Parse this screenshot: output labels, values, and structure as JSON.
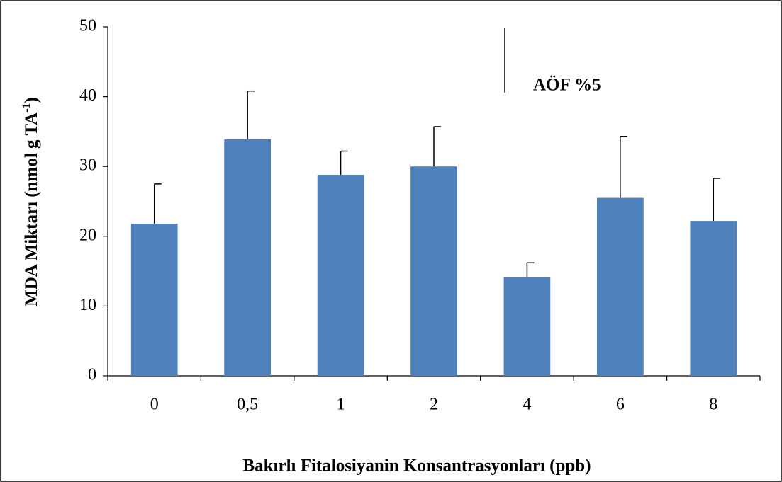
{
  "chart_data": {
    "type": "bar",
    "xlabel": "Bakırlı Fitalosiyanin Konsantrasyonları (ppb)",
    "ylabel_parts": [
      "MDA Miktarı (nmol g TA",
      "-1",
      ")"
    ],
    "categories": [
      "0",
      "0,5",
      "1",
      "2",
      "4",
      "6",
      "8"
    ],
    "values": [
      21.8,
      33.9,
      28.8,
      30.0,
      14.1,
      25.5,
      22.2
    ],
    "errors": [
      5.7,
      6.9,
      3.4,
      5.7,
      2.1,
      8.8,
      6.1
    ],
    "color": "#4f81bd",
    "ylim": [
      0,
      50
    ],
    "yticks": [
      0,
      10,
      20,
      30,
      40,
      50
    ],
    "annotation": {
      "label": "AÖF %5",
      "value": 9.2
    }
  }
}
